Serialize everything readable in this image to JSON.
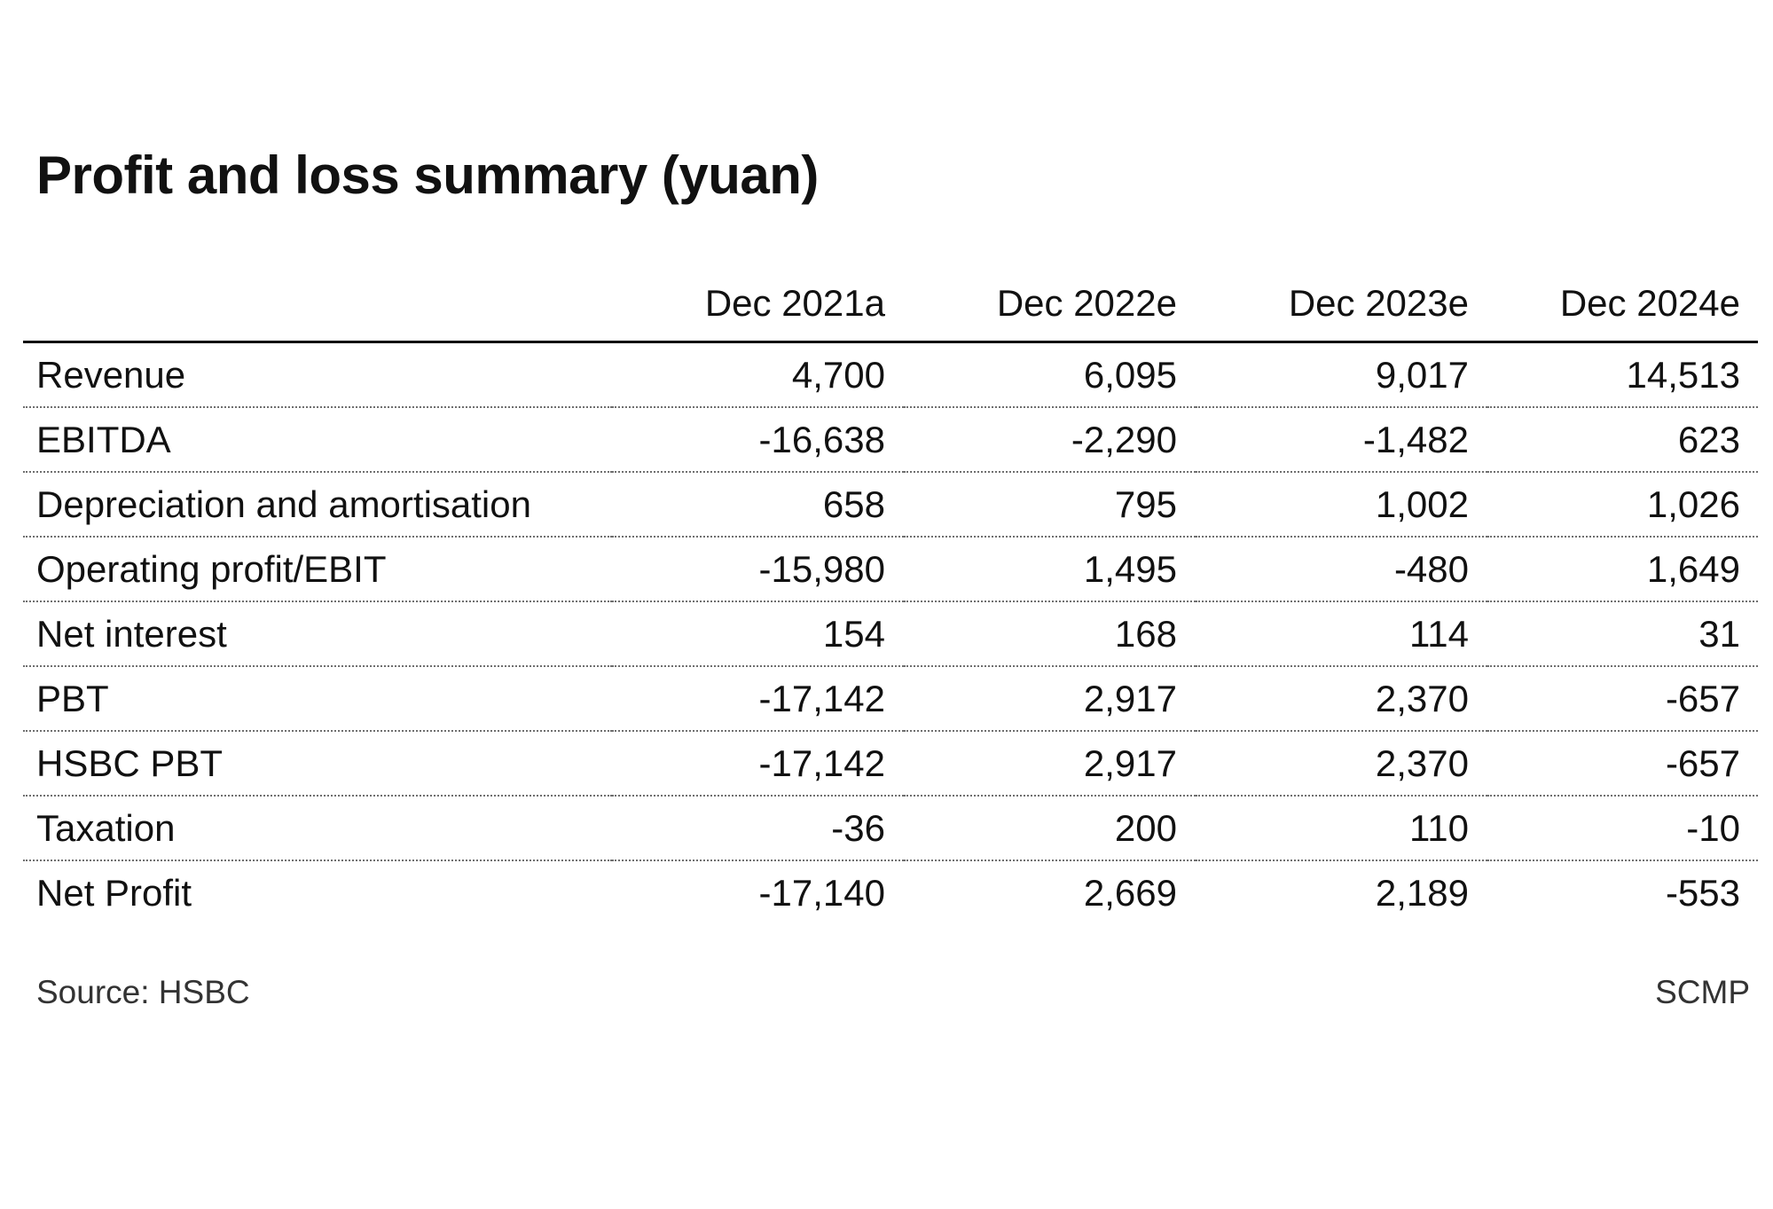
{
  "chart_data": {
    "type": "table",
    "title": "Profit and loss summary (yuan)",
    "columns": [
      "Dec 2021a",
      "Dec 2022e",
      "Dec 2023e",
      "Dec 2024e"
    ],
    "rows": [
      {
        "label": "Revenue",
        "values": [
          "4,700",
          "6,095",
          "9,017",
          "14,513"
        ]
      },
      {
        "label": "EBITDA",
        "values": [
          "-16,638",
          "-2,290",
          "-1,482",
          "623"
        ]
      },
      {
        "label": "Depreciation and amortisation",
        "values": [
          "658",
          "795",
          "1,002",
          "1,026"
        ]
      },
      {
        "label": "Operating profit/EBIT",
        "values": [
          "-15,980",
          "1,495",
          "-480",
          "1,649"
        ]
      },
      {
        "label": "Net interest",
        "values": [
          "154",
          "168",
          "114",
          "31"
        ]
      },
      {
        "label": "PBT",
        "values": [
          "-17,142",
          "2,917",
          "2,370",
          "-657"
        ]
      },
      {
        "label": "HSBC PBT",
        "values": [
          "-17,142",
          "2,917",
          "2,370",
          "-657"
        ]
      },
      {
        "label": "Taxation",
        "values": [
          "-36",
          "200",
          "110",
          "-10"
        ]
      },
      {
        "label": "Net Profit",
        "values": [
          "-17,140",
          "2,669",
          "2,189",
          "-553"
        ]
      }
    ],
    "source": "Source: HSBC",
    "credit": "SCMP"
  }
}
